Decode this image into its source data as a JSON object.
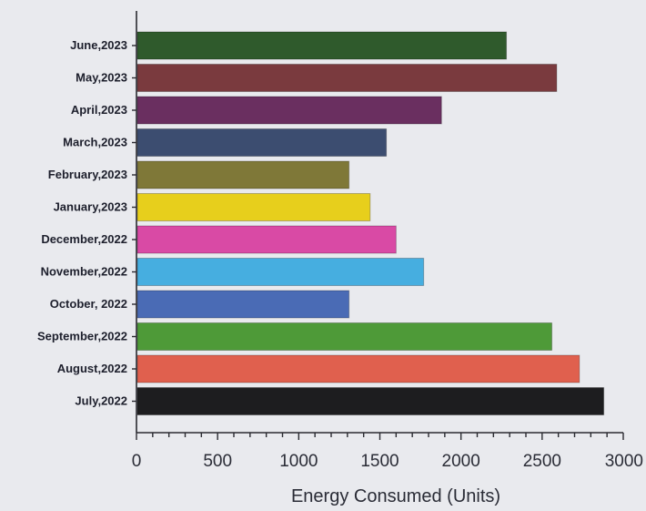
{
  "chart_data": {
    "type": "bar",
    "orientation": "horizontal",
    "title": "",
    "xlabel": "Energy Consumed (Units)",
    "ylabel": "",
    "xlim": [
      0,
      3000
    ],
    "xticks": [
      0,
      500,
      1000,
      1500,
      2000,
      2500,
      3000
    ],
    "grid": false,
    "categories": [
      "June,2023",
      "May,2023",
      "April,2023",
      "March,2023",
      "February,2023",
      "January,2023",
      "December,2022",
      "November,2022",
      "October, 2022",
      "September,2022",
      "August,2022",
      "July,2022"
    ],
    "values": [
      2280,
      2590,
      1880,
      1540,
      1310,
      1440,
      1600,
      1770,
      1310,
      2560,
      2730,
      2880
    ],
    "colors": [
      "#2f5a2c",
      "#7a3a3e",
      "#6a2f60",
      "#3c4d70",
      "#7f7838",
      "#e7cf1c",
      "#d94aa5",
      "#46aee0",
      "#4a6bb5",
      "#4e9a38",
      "#e0604e",
      "#1d1d1f"
    ]
  }
}
